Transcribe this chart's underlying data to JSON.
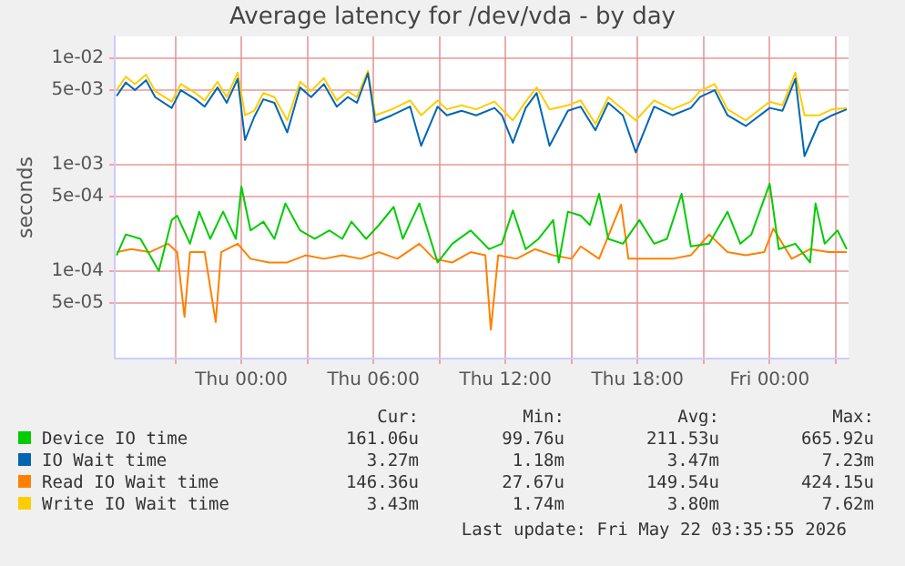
{
  "chart_data": {
    "type": "line",
    "title": "Average latency for /dev/vda - by day",
    "ylabel": "seconds",
    "log": "y",
    "grid": true,
    "legend": "bottom",
    "marker": "none",
    "line_style": "solid",
    "xlim": [
      "2026-05-20T18:15",
      "2026-05-22T03:35"
    ],
    "xticks": [
      {
        "value": "2026-05-20T21:00",
        "label": null
      },
      {
        "value": "2026-05-21T00:00",
        "label": "Thu 00:00"
      },
      {
        "value": "2026-05-21T03:00",
        "label": null
      },
      {
        "value": "2026-05-21T06:00",
        "label": "Thu 06:00"
      },
      {
        "value": "2026-05-21T09:00",
        "label": null
      },
      {
        "value": "2026-05-21T12:00",
        "label": "Thu 12:00"
      },
      {
        "value": "2026-05-21T15:00",
        "label": null
      },
      {
        "value": "2026-05-21T18:00",
        "label": "Thu 18:00"
      },
      {
        "value": "2026-05-21T21:00",
        "label": null
      },
      {
        "value": "2026-05-22T00:00",
        "label": "Fri 00:00"
      },
      {
        "value": "2026-05-22T03:00",
        "label": null
      }
    ],
    "ylim": [
      1.5e-05,
      0.016
    ],
    "yticks": [
      {
        "value": 5e-05,
        "label": "5e-05"
      },
      {
        "value": 0.0001,
        "label": "1e-04"
      },
      {
        "value": 0.0005,
        "label": "5e-04"
      },
      {
        "value": 0.001,
        "label": "1e-03"
      },
      {
        "value": 0.005,
        "label": "5e-03"
      },
      {
        "value": 0.01,
        "label": "1e-02"
      }
    ],
    "series": [
      {
        "name": "Device IO time",
        "color": "#00cc00",
        "x": [
          "2026-05-20T18:20",
          "2026-05-20T18:45",
          "2026-05-20T19:25",
          "2026-05-20T20:15",
          "2026-05-20T20:50",
          "2026-05-20T21:05",
          "2026-05-20T21:40",
          "2026-05-20T22:05",
          "2026-05-20T22:35",
          "2026-05-20T23:10",
          "2026-05-20T23:45",
          "2026-05-21T00:00",
          "2026-05-21T00:25",
          "2026-05-21T01:00",
          "2026-05-21T01:30",
          "2026-05-21T02:00",
          "2026-05-21T02:40",
          "2026-05-21T03:20",
          "2026-05-21T04:00",
          "2026-05-21T04:35",
          "2026-05-21T05:00",
          "2026-05-21T05:40",
          "2026-05-21T06:15",
          "2026-05-21T06:55",
          "2026-05-21T07:20",
          "2026-05-21T08:05",
          "2026-05-21T08:55",
          "2026-05-21T09:35",
          "2026-05-21T10:25",
          "2026-05-21T11:15",
          "2026-05-21T11:50",
          "2026-05-21T12:20",
          "2026-05-21T12:55",
          "2026-05-21T13:30",
          "2026-05-21T14:10",
          "2026-05-21T14:25",
          "2026-05-21T14:50",
          "2026-05-21T15:25",
          "2026-05-21T15:50",
          "2026-05-21T16:15",
          "2026-05-21T16:40",
          "2026-05-21T17:20",
          "2026-05-21T18:05",
          "2026-05-21T18:45",
          "2026-05-21T19:20",
          "2026-05-21T20:00",
          "2026-05-21T20:25",
          "2026-05-21T21:15",
          "2026-05-21T22:05",
          "2026-05-21T22:40",
          "2026-05-21T23:10",
          "2026-05-22T00:00",
          "2026-05-22T00:25",
          "2026-05-22T01:10",
          "2026-05-22T01:50",
          "2026-05-22T02:05",
          "2026-05-22T02:30",
          "2026-05-22T03:05",
          "2026-05-22T03:30"
        ],
        "values": [
          0.00014,
          0.00022,
          0.0002,
          0.0001,
          0.0003,
          0.00033,
          0.00018,
          0.00036,
          0.0002,
          0.00036,
          0.0002,
          0.00062,
          0.00024,
          0.00029,
          0.0002,
          0.00043,
          0.00024,
          0.0002,
          0.00024,
          0.0002,
          0.00029,
          0.0002,
          0.00027,
          0.0004,
          0.0002,
          0.00043,
          0.00012,
          0.00018,
          0.00024,
          0.00016,
          0.00018,
          0.00037,
          0.00016,
          0.0002,
          0.0003,
          0.00012,
          0.00036,
          0.00033,
          0.00027,
          0.00053,
          0.0002,
          0.00018,
          0.0003,
          0.00018,
          0.0002,
          0.00053,
          0.00017,
          0.00018,
          0.00036,
          0.00018,
          0.00022,
          0.00066,
          0.00016,
          0.00018,
          0.00012,
          0.00043,
          0.00018,
          0.00024,
          0.00016
        ]
      },
      {
        "name": "IO Wait time",
        "color": "#0066b3",
        "x": [
          "2026-05-20T18:20",
          "2026-05-20T18:45",
          "2026-05-20T19:10",
          "2026-05-20T19:40",
          "2026-05-20T20:05",
          "2026-05-20T20:50",
          "2026-05-20T21:15",
          "2026-05-20T21:55",
          "2026-05-20T22:20",
          "2026-05-20T22:55",
          "2026-05-20T23:20",
          "2026-05-20T23:50",
          "2026-05-21T00:10",
          "2026-05-21T00:35",
          "2026-05-21T01:00",
          "2026-05-21T01:30",
          "2026-05-21T02:05",
          "2026-05-21T02:40",
          "2026-05-21T03:10",
          "2026-05-21T03:45",
          "2026-05-21T04:20",
          "2026-05-21T04:50",
          "2026-05-21T05:15",
          "2026-05-21T05:45",
          "2026-05-21T06:05",
          "2026-05-21T06:50",
          "2026-05-21T07:40",
          "2026-05-21T08:10",
          "2026-05-21T08:55",
          "2026-05-21T09:20",
          "2026-05-21T10:00",
          "2026-05-21T10:40",
          "2026-05-21T11:30",
          "2026-05-21T11:50",
          "2026-05-21T12:20",
          "2026-05-21T12:55",
          "2026-05-21T13:25",
          "2026-05-21T14:00",
          "2026-05-21T14:50",
          "2026-05-21T15:25",
          "2026-05-21T16:05",
          "2026-05-21T16:40",
          "2026-05-21T17:20",
          "2026-05-21T17:55",
          "2026-05-21T18:45",
          "2026-05-21T19:35",
          "2026-05-21T20:25",
          "2026-05-21T20:50",
          "2026-05-21T21:30",
          "2026-05-21T22:05",
          "2026-05-21T22:55",
          "2026-05-22T00:00",
          "2026-05-22T00:35",
          "2026-05-22T01:10",
          "2026-05-22T01:35",
          "2026-05-22T02:15",
          "2026-05-22T02:50",
          "2026-05-22T03:30"
        ],
        "values": [
          0.0044,
          0.0059,
          0.005,
          0.0062,
          0.0043,
          0.0034,
          0.005,
          0.0041,
          0.0035,
          0.0053,
          0.0038,
          0.0064,
          0.0017,
          0.0028,
          0.0041,
          0.0038,
          0.002,
          0.0053,
          0.0043,
          0.0057,
          0.0035,
          0.0043,
          0.0038,
          0.0072,
          0.0025,
          0.0029,
          0.0035,
          0.0015,
          0.0035,
          0.0029,
          0.0032,
          0.0029,
          0.0034,
          0.0029,
          0.0016,
          0.0034,
          0.0047,
          0.0015,
          0.0032,
          0.0035,
          0.0021,
          0.0038,
          0.0029,
          0.0013,
          0.0035,
          0.0029,
          0.0034,
          0.0043,
          0.005,
          0.0029,
          0.0023,
          0.0034,
          0.0032,
          0.0064,
          0.0012,
          0.0025,
          0.0029,
          0.0033
        ]
      },
      {
        "name": "Read IO Wait time",
        "color": "#ff8000",
        "x": [
          "2026-05-20T18:20",
          "2026-05-20T19:00",
          "2026-05-20T19:50",
          "2026-05-20T20:40",
          "2026-05-20T21:05",
          "2026-05-20T21:25",
          "2026-05-20T21:40",
          "2026-05-20T22:20",
          "2026-05-20T22:50",
          "2026-05-20T23:05",
          "2026-05-20T23:50",
          "2026-05-21T00:25",
          "2026-05-21T01:15",
          "2026-05-21T02:05",
          "2026-05-21T02:55",
          "2026-05-21T03:45",
          "2026-05-21T04:35",
          "2026-05-21T05:25",
          "2026-05-21T06:15",
          "2026-05-21T07:05",
          "2026-05-21T08:05",
          "2026-05-21T08:45",
          "2026-05-21T09:35",
          "2026-05-21T10:25",
          "2026-05-21T11:05",
          "2026-05-21T11:20",
          "2026-05-21T11:40",
          "2026-05-21T12:30",
          "2026-05-21T13:20",
          "2026-05-21T14:10",
          "2026-05-21T15:00",
          "2026-05-21T15:25",
          "2026-05-21T16:15",
          "2026-05-21T17:15",
          "2026-05-21T17:35",
          "2026-05-21T18:45",
          "2026-05-21T19:35",
          "2026-05-21T20:25",
          "2026-05-21T21:15",
          "2026-05-21T22:05",
          "2026-05-21T22:55",
          "2026-05-21T23:45",
          "2026-05-22T00:10",
          "2026-05-22T01:00",
          "2026-05-22T01:50",
          "2026-05-22T02:40",
          "2026-05-22T03:30"
        ],
        "values": [
          0.00015,
          0.00016,
          0.00015,
          0.00018,
          0.00015,
          3.7e-05,
          0.00015,
          0.00015,
          3.3e-05,
          0.00015,
          0.00018,
          0.00013,
          0.00012,
          0.00012,
          0.00014,
          0.00013,
          0.00014,
          0.00013,
          0.00015,
          0.00013,
          0.00018,
          0.00013,
          0.00012,
          0.00015,
          0.00014,
          2.8e-05,
          0.00014,
          0.00013,
          0.00016,
          0.00014,
          0.00013,
          0.00017,
          0.00013,
          0.00042,
          0.00013,
          0.00013,
          0.00013,
          0.00014,
          0.00022,
          0.00015,
          0.00014,
          0.00015,
          0.00025,
          0.00013,
          0.00016,
          0.00015,
          0.00015
        ]
      },
      {
        "name": "Write IO Wait time",
        "color": "#ffcc00",
        "x": [
          "2026-05-20T18:20",
          "2026-05-20T18:45",
          "2026-05-20T19:10",
          "2026-05-20T19:40",
          "2026-05-20T20:05",
          "2026-05-20T20:50",
          "2026-05-20T21:15",
          "2026-05-20T21:55",
          "2026-05-20T22:20",
          "2026-05-20T22:55",
          "2026-05-20T23:20",
          "2026-05-20T23:50",
          "2026-05-21T00:10",
          "2026-05-21T00:35",
          "2026-05-21T01:00",
          "2026-05-21T01:30",
          "2026-05-21T02:05",
          "2026-05-21T02:40",
          "2026-05-21T03:10",
          "2026-05-21T03:45",
          "2026-05-21T04:20",
          "2026-05-21T04:50",
          "2026-05-21T05:15",
          "2026-05-21T05:45",
          "2026-05-21T06:05",
          "2026-05-21T06:50",
          "2026-05-21T07:40",
          "2026-05-21T08:10",
          "2026-05-21T08:55",
          "2026-05-21T09:20",
          "2026-05-21T10:00",
          "2026-05-21T10:40",
          "2026-05-21T11:30",
          "2026-05-21T11:50",
          "2026-05-21T12:20",
          "2026-05-21T12:55",
          "2026-05-21T13:25",
          "2026-05-21T14:00",
          "2026-05-21T14:50",
          "2026-05-21T15:25",
          "2026-05-21T16:05",
          "2026-05-21T16:40",
          "2026-05-21T17:20",
          "2026-05-21T17:55",
          "2026-05-21T18:45",
          "2026-05-21T19:35",
          "2026-05-21T20:25",
          "2026-05-21T20:50",
          "2026-05-21T21:30",
          "2026-05-21T22:05",
          "2026-05-21T22:55",
          "2026-05-22T00:00",
          "2026-05-22T00:35",
          "2026-05-22T01:10",
          "2026-05-22T01:35",
          "2026-05-22T02:15",
          "2026-05-22T02:50",
          "2026-05-22T03:30"
        ],
        "values": [
          0.005,
          0.0067,
          0.0057,
          0.007,
          0.0049,
          0.0039,
          0.0057,
          0.0047,
          0.004,
          0.006,
          0.0043,
          0.0073,
          0.0029,
          0.0032,
          0.0047,
          0.0043,
          0.0026,
          0.006,
          0.0049,
          0.0065,
          0.004,
          0.0049,
          0.0043,
          0.0076,
          0.0029,
          0.0033,
          0.004,
          0.0029,
          0.004,
          0.0033,
          0.0036,
          0.0033,
          0.0039,
          0.0033,
          0.0026,
          0.0039,
          0.0053,
          0.0033,
          0.0036,
          0.004,
          0.0024,
          0.0043,
          0.0033,
          0.0026,
          0.004,
          0.0033,
          0.0039,
          0.0049,
          0.0057,
          0.0033,
          0.0026,
          0.0039,
          0.0036,
          0.0073,
          0.0029,
          0.0029,
          0.0033,
          0.0034
        ]
      }
    ],
    "annotations": [
      "Cur:",
      "Min:",
      "Avg:",
      "Max:",
      "161.06u",
      "99.76u",
      "211.53u",
      "665.92u",
      "3.27m",
      "1.18m",
      "3.47m",
      "7.23m",
      "146.36u",
      "27.67u",
      "149.54u",
      "424.15u",
      "3.43m",
      "1.74m",
      "3.80m",
      "7.62m",
      "Last update: Fri May 22 03:35:55 2026"
    ]
  }
}
